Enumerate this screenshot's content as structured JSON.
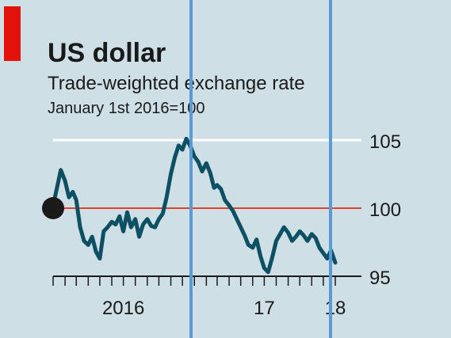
{
  "colors": {
    "background": "#cfdfe6",
    "accent_bar": "#e3120b",
    "line": "#0d4f63",
    "baseline": "#e0432b",
    "gridline": "#ffffff",
    "marker": "#1a1a1a",
    "overlay": "#5b9bd5",
    "axis": "#1a1a1a",
    "text": "#1a1a1a"
  },
  "chart_data": {
    "type": "line",
    "title": "US dollar",
    "subtitle": "Trade-weighted exchange rate",
    "note": "January 1st 2016=100",
    "x_start": "2016-01-01",
    "x_end": "2018-01-01",
    "ylim": [
      95,
      105
    ],
    "yticks": [
      {
        "value": 105,
        "label": "105"
      },
      {
        "value": 100,
        "label": "100"
      },
      {
        "value": 95,
        "label": "95"
      }
    ],
    "xticks": [
      {
        "date": "2016-07-01",
        "label": "2016"
      },
      {
        "date": "2017-07-01",
        "label": "17"
      },
      {
        "date": "2018-01-01",
        "label": "18"
      }
    ],
    "minor_xticks": [
      "2016-01-01",
      "2016-02-01",
      "2016-03-01",
      "2016-04-01",
      "2016-05-01",
      "2016-06-01",
      "2016-07-01",
      "2016-08-01",
      "2016-09-01",
      "2016-10-01",
      "2016-11-01",
      "2016-12-01",
      "2017-01-01",
      "2017-02-01",
      "2017-03-01",
      "2017-04-01",
      "2017-05-01",
      "2017-06-01",
      "2017-07-01",
      "2017-08-01",
      "2017-09-01",
      "2017-10-01",
      "2017-11-01",
      "2017-12-01",
      "2018-01-01"
    ],
    "baseline_value": 100,
    "start_marker": {
      "date": "2016-01-01",
      "value": 100
    },
    "series": [
      {
        "x": [
          "2016-01-01",
          "2016-01-11",
          "2016-01-21",
          "2016-02-01",
          "2016-02-11",
          "2016-02-21",
          "2016-03-01",
          "2016-03-11",
          "2016-03-21",
          "2016-04-01",
          "2016-04-11",
          "2016-04-21",
          "2016-05-01",
          "2016-05-11",
          "2016-05-21",
          "2016-06-01",
          "2016-06-11",
          "2016-06-21",
          "2016-07-01",
          "2016-07-11",
          "2016-07-21",
          "2016-08-01",
          "2016-08-11",
          "2016-08-21",
          "2016-09-01",
          "2016-09-11",
          "2016-09-21",
          "2016-10-01",
          "2016-10-11",
          "2016-10-21",
          "2016-11-01",
          "2016-11-11",
          "2016-11-21",
          "2016-12-01",
          "2016-12-11",
          "2016-12-21",
          "2017-01-01",
          "2017-01-11",
          "2017-01-21",
          "2017-02-01",
          "2017-02-11",
          "2017-02-21",
          "2017-03-01",
          "2017-03-11",
          "2017-03-21",
          "2017-04-01",
          "2017-04-11",
          "2017-04-21",
          "2017-05-01",
          "2017-05-11",
          "2017-05-21",
          "2017-06-01",
          "2017-06-11",
          "2017-06-21",
          "2017-07-01",
          "2017-07-11",
          "2017-07-21",
          "2017-08-01",
          "2017-08-11",
          "2017-08-21",
          "2017-09-01",
          "2017-09-11",
          "2017-09-21",
          "2017-10-01",
          "2017-10-11",
          "2017-10-21",
          "2017-11-01",
          "2017-11-11",
          "2017-11-21",
          "2017-12-01",
          "2017-12-11",
          "2017-12-21",
          "2018-01-01"
        ],
        "values": [
          100.2,
          101.5,
          102.8,
          102.0,
          100.8,
          101.2,
          100.6,
          98.6,
          97.6,
          97.3,
          97.9,
          96.8,
          96.3,
          98.3,
          98.6,
          99.0,
          98.8,
          99.4,
          98.3,
          99.7,
          98.6,
          99.2,
          97.9,
          98.8,
          99.2,
          98.7,
          98.6,
          99.2,
          99.6,
          100.8,
          102.5,
          103.7,
          104.6,
          104.3,
          105.1,
          104.6,
          103.8,
          103.4,
          102.7,
          103.3,
          102.6,
          101.5,
          101.7,
          101.4,
          100.6,
          100.2,
          99.8,
          99.2,
          98.6,
          98.0,
          97.3,
          97.1,
          97.7,
          96.5,
          95.6,
          95.3,
          96.3,
          97.6,
          98.1,
          98.6,
          98.2,
          97.6,
          97.9,
          98.3,
          98.0,
          97.6,
          98.1,
          97.8,
          97.1,
          96.7,
          96.3,
          96.9,
          96.0
        ]
      }
    ]
  }
}
